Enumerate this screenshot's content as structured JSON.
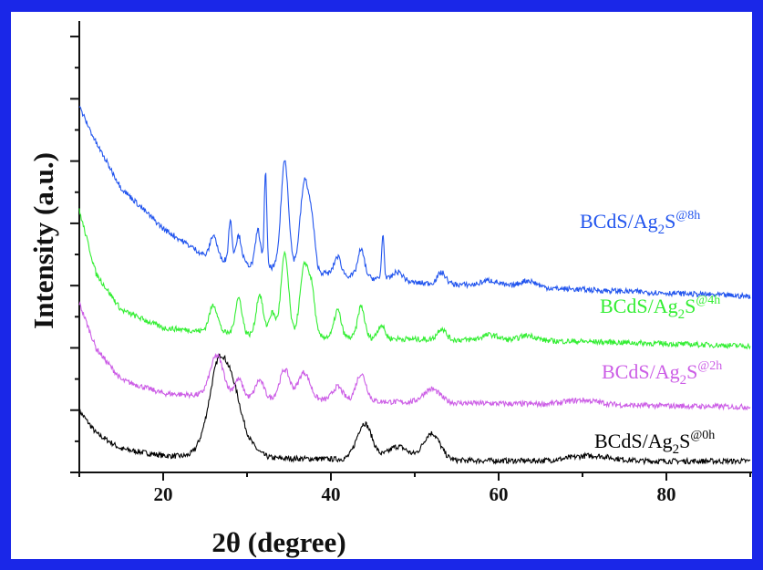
{
  "chart_data": {
    "type": "line",
    "title": "",
    "xlabel": "2θ  (degree)",
    "ylabel": "Intensity (a.u.)",
    "xlim": [
      10,
      90
    ],
    "ylim": [
      0,
      1
    ],
    "x_ticks": [
      "20",
      "40",
      "60",
      "80"
    ],
    "y_tick_labels": "none",
    "grid": false,
    "legend": "labels placed next to each curve at right",
    "series": [
      {
        "name_parts": [
          "BCdS/Ag",
          "2",
          "S",
          "@0h"
        ],
        "color": "#000000",
        "baseline": 0.025,
        "background": [
          [
            10,
            0.14
          ],
          [
            12,
            0.09
          ],
          [
            15,
            0.055
          ],
          [
            20,
            0.04
          ],
          [
            30,
            0.035
          ],
          [
            50,
            0.03
          ],
          [
            70,
            0.028
          ],
          [
            90,
            0.028
          ]
        ],
        "peaks": [
          [
            25.3,
            0.05,
            1.0
          ],
          [
            26.6,
            0.16,
            0.9
          ],
          [
            28.2,
            0.14,
            1.0
          ],
          [
            30.0,
            0.03,
            1.2
          ],
          [
            44.0,
            0.08,
            0.9
          ],
          [
            48.0,
            0.03,
            1.2
          ],
          [
            52.0,
            0.06,
            1.0
          ],
          [
            71.0,
            0.012,
            2.5
          ]
        ]
      },
      {
        "name_parts": [
          "BCdS/Ag",
          "2",
          "S",
          "@2h"
        ],
        "color": "#cc5ee6",
        "baseline": 0.145,
        "background": [
          [
            10,
            0.3
          ],
          [
            12,
            0.2
          ],
          [
            15,
            0.13
          ],
          [
            20,
            0.1
          ],
          [
            30,
            0.09
          ],
          [
            50,
            0.08
          ],
          [
            70,
            0.075
          ],
          [
            90,
            0.07
          ]
        ],
        "peaks": [
          [
            26.4,
            0.09,
            0.8
          ],
          [
            29.0,
            0.04,
            0.5
          ],
          [
            31.5,
            0.04,
            0.5
          ],
          [
            34.5,
            0.065,
            0.6
          ],
          [
            36.8,
            0.06,
            0.7
          ],
          [
            40.8,
            0.03,
            0.6
          ],
          [
            43.6,
            0.06,
            0.6
          ],
          [
            52.0,
            0.03,
            1.0
          ],
          [
            70.0,
            0.01,
            2.0
          ]
        ]
      },
      {
        "name_parts": [
          "BCdS/Ag",
          "2",
          "S",
          "@4h"
        ],
        "color": "#33ee33",
        "baseline": 0.28,
        "background": [
          [
            10,
            0.36
          ],
          [
            12,
            0.22
          ],
          [
            15,
            0.14
          ],
          [
            20,
            0.1
          ],
          [
            30,
            0.085
          ],
          [
            50,
            0.075
          ],
          [
            70,
            0.07
          ],
          [
            90,
            0.06
          ]
        ],
        "peaks": [
          [
            26.0,
            0.06,
            0.5
          ],
          [
            29.0,
            0.08,
            0.4
          ],
          [
            31.5,
            0.09,
            0.4
          ],
          [
            33.0,
            0.05,
            0.4
          ],
          [
            34.5,
            0.18,
            0.45
          ],
          [
            36.9,
            0.16,
            0.55
          ],
          [
            37.8,
            0.07,
            0.35
          ],
          [
            40.8,
            0.06,
            0.4
          ],
          [
            43.6,
            0.07,
            0.4
          ],
          [
            46.0,
            0.03,
            0.4
          ],
          [
            53.2,
            0.025,
            0.5
          ],
          [
            59.0,
            0.012,
            1.0
          ],
          [
            63.5,
            0.012,
            1.0
          ]
        ]
      },
      {
        "name_parts": [
          "BCdS/Ag",
          "2",
          "S",
          "@8h"
        ],
        "color": "#2255ee",
        "baseline": 0.39,
        "background": [
          [
            10,
            0.44
          ],
          [
            12,
            0.36
          ],
          [
            15,
            0.26
          ],
          [
            20,
            0.17
          ],
          [
            25,
            0.11
          ],
          [
            30,
            0.09
          ],
          [
            40,
            0.07
          ],
          [
            50,
            0.05
          ],
          [
            70,
            0.035
          ],
          [
            90,
            0.02
          ]
        ],
        "peaks": [
          [
            26.0,
            0.05,
            0.4
          ],
          [
            28.0,
            0.09,
            0.2
          ],
          [
            29.0,
            0.06,
            0.35
          ],
          [
            31.3,
            0.08,
            0.3
          ],
          [
            32.2,
            0.21,
            0.15
          ],
          [
            34.5,
            0.24,
            0.45
          ],
          [
            36.9,
            0.2,
            0.55
          ],
          [
            37.8,
            0.07,
            0.35
          ],
          [
            40.8,
            0.04,
            0.4
          ],
          [
            43.6,
            0.06,
            0.4
          ],
          [
            46.2,
            0.1,
            0.15
          ],
          [
            48.0,
            0.02,
            0.6
          ],
          [
            53.2,
            0.025,
            0.5
          ],
          [
            59.0,
            0.012,
            1.0
          ],
          [
            63.5,
            0.015,
            1.0
          ]
        ]
      }
    ]
  }
}
